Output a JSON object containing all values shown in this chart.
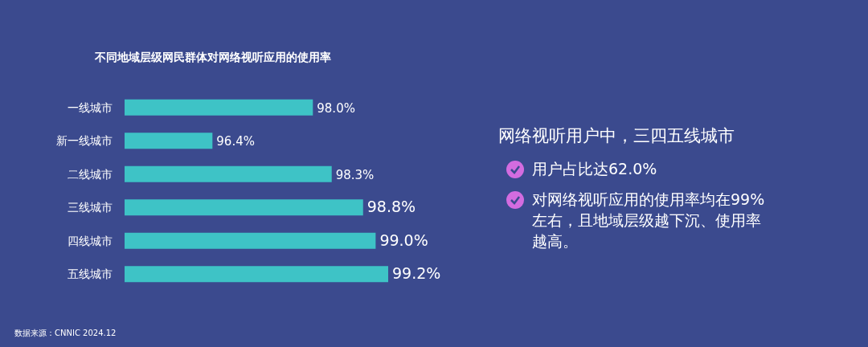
{
  "chart_data": [
    {
      "type": "bar",
      "orientation": "horizontal",
      "title": "不同地域层级网民群体对网络视听应用的使用率",
      "categories": [
        "一线城市",
        "新一线城市",
        "二线城市",
        "三线城市",
        "四线城市",
        "五线城市"
      ],
      "values": [
        98.0,
        96.4,
        98.3,
        98.8,
        99.0,
        99.2
      ],
      "value_labels": [
        "98.0%",
        "96.4%",
        "98.3%",
        "98.8%",
        "99.0%",
        "99.2%"
      ],
      "color": "#3ec3c6",
      "xlim": [
        95,
        99.2
      ],
      "annotations": [
        "数据来源：CNNIC 2024.12"
      ]
    },
    {
      "type": "other",
      "title": "网络视听用户中，三四五线城市",
      "annotations": [
        "用户占比达62.0%",
        "对网络视听应用的使用率均在99%左右，且地域层级越下沉、使用率越高。"
      ]
    }
  ]
}
